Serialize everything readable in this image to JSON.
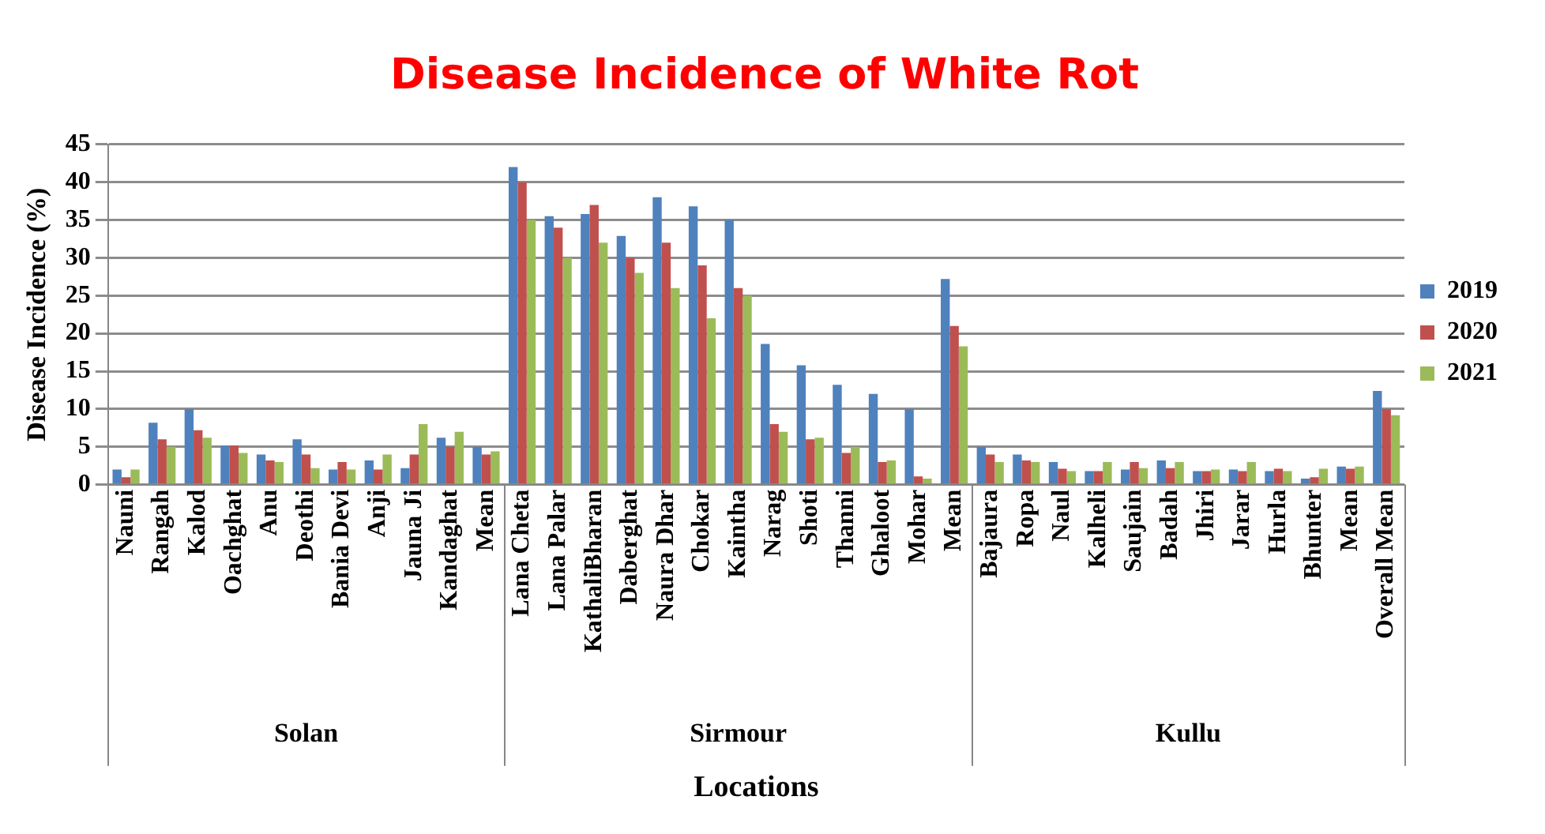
{
  "chart_data": {
    "type": "bar",
    "title": "Disease Incidence of White Rot",
    "xlabel": "Locations",
    "ylabel": "Disease Incidence (%)",
    "categories": [
      "Nauni",
      "Rangah",
      "Kalod",
      "Oachghat",
      "Anu",
      "Deothi",
      "Bania Devi",
      "Anji",
      "Jauna Ji",
      "Kandaghat",
      "Mean",
      "Lana Cheta",
      "Lana Palar",
      "KathaliBharan",
      "Daberghat",
      "Naura Dhar",
      "Chokar",
      "Kaintha",
      "Narag",
      "Shoti",
      "Thanni",
      "Ghaloot",
      "Mohar",
      "Mean",
      "Bajaura",
      "Ropa",
      "Naul",
      "Kalheli",
      "Saujain",
      "Badah",
      "Jhiri",
      "Jarar",
      "Hurla",
      "Bhunter",
      "Mean",
      "Overall Mean"
    ],
    "series": [
      {
        "name": "2019",
        "color": "#4f81bd",
        "values": [
          2,
          8.2,
          10,
          5.2,
          4,
          6,
          2,
          3.2,
          2.2,
          6.2,
          5,
          42,
          35.5,
          35.8,
          32.9,
          38,
          36.8,
          35,
          18.6,
          15.8,
          13.2,
          12,
          10,
          27.2,
          5,
          4,
          3,
          1.8,
          2,
          3.2,
          1.8,
          2,
          1.8,
          0.8,
          2.4,
          12.4
        ]
      },
      {
        "name": "2020",
        "color": "#c0504d",
        "values": [
          1,
          6,
          7.2,
          5.2,
          3.2,
          4,
          3,
          2,
          4,
          5,
          4,
          40,
          34,
          37,
          30,
          32,
          29,
          26,
          8,
          6,
          4.2,
          3,
          1.1,
          21,
          4,
          3.2,
          2.1,
          1.8,
          3,
          2.2,
          1.8,
          1.8,
          2.1,
          1,
          2.1,
          10
        ]
      },
      {
        "name": "2021",
        "color": "#9bbb59",
        "values": [
          2,
          5,
          6.2,
          4.2,
          3,
          2.2,
          2,
          4,
          8,
          7,
          4.4,
          35,
          30,
          32,
          28,
          26,
          22,
          25,
          7,
          6.2,
          5,
          3.2,
          0.8,
          18.3,
          3,
          3,
          1.8,
          3,
          2.2,
          3,
          2,
          3,
          1.8,
          2.1,
          2.4,
          9.2
        ]
      }
    ],
    "annotations": [
      "Solan",
      "Sirmour",
      "Kullu"
    ],
    "ylim": [
      0,
      45
    ],
    "yticks": [
      0,
      5,
      10,
      15,
      20,
      25,
      30,
      35,
      40,
      45
    ],
    "grid": "y",
    "legend": "right"
  }
}
